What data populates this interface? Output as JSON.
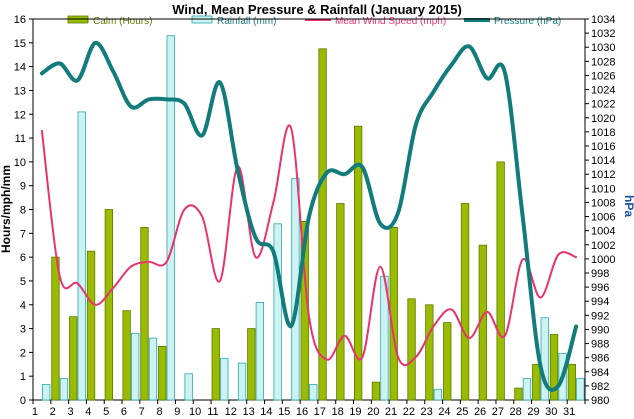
{
  "chart_data": {
    "type": "bar",
    "title": "Wind, Mean Pressure & Rainfall (January 2015)",
    "ylabel": "Hours/mph/mm",
    "y2label": "hPa",
    "categories": [
      "1",
      "2",
      "3",
      "4",
      "5",
      "6",
      "7",
      "8",
      "9",
      "10",
      "11",
      "12",
      "13",
      "14",
      "15",
      "16",
      "17",
      "18",
      "19",
      "20",
      "21",
      "22",
      "23",
      "24",
      "25",
      "26",
      "27",
      "28",
      "29",
      "30",
      "31"
    ],
    "ylim": [
      0,
      16
    ],
    "yticks": [
      0,
      1,
      2,
      3,
      4,
      5,
      6,
      7,
      8,
      9,
      10,
      11,
      12,
      13,
      14,
      15,
      16
    ],
    "y2lim": [
      980,
      1034
    ],
    "y2ticks": [
      980,
      982,
      984,
      986,
      988,
      990,
      992,
      994,
      996,
      998,
      1000,
      1002,
      1004,
      1006,
      1008,
      1010,
      1012,
      1014,
      1016,
      1018,
      1020,
      1022,
      1024,
      1026,
      1028,
      1030,
      1032,
      1034
    ],
    "grid": false,
    "legend_position": "top",
    "series": [
      {
        "name": "Calm (Hours)",
        "kind": "bar",
        "axis": "left",
        "color": "#99bb00",
        "values": [
          0,
          6.0,
          3.5,
          6.25,
          8.0,
          3.75,
          7.25,
          2.25,
          0,
          0,
          3.0,
          0,
          3.0,
          0,
          0,
          7.5,
          14.75,
          8.25,
          11.5,
          0.75,
          7.25,
          4.25,
          4.0,
          3.25,
          8.25,
          6.5,
          10.0,
          0.5,
          1.5,
          2.75,
          1.5
        ]
      },
      {
        "name": "Rainfall (mm)",
        "kind": "bar",
        "axis": "left",
        "color": "#ccf2f2",
        "values": [
          0.65,
          0.9,
          12.1,
          0,
          0,
          2.8,
          2.6,
          15.3,
          1.1,
          0,
          1.75,
          1.55,
          4.1,
          7.4,
          9.3,
          0.65,
          0,
          0,
          0,
          5.2,
          0,
          0,
          0.45,
          0,
          0,
          0,
          0,
          0.9,
          3.45,
          1.95,
          0.9
        ]
      },
      {
        "name": "Mean Wind Speed (mph)",
        "kind": "line",
        "axis": "left",
        "color": "#e8336e",
        "values": [
          11.3,
          5.2,
          4.9,
          4.0,
          4.7,
          5.6,
          5.8,
          5.8,
          8.0,
          7.7,
          5.0,
          9.8,
          6.0,
          8.3,
          11.4,
          3.5,
          1.7,
          2.7,
          1.8,
          5.6,
          1.8,
          1.8,
          3.1,
          3.8,
          2.6,
          3.7,
          2.7,
          5.9,
          4.3,
          6.1,
          6.0
        ]
      },
      {
        "name": "Pressure (hPa)",
        "kind": "line",
        "axis": "right",
        "color": "#127b7b",
        "values": [
          1026.3,
          1027.7,
          1025.3,
          1030.6,
          1026.6,
          1021.6,
          1022.6,
          1022.6,
          1022.0,
          1017.5,
          1025.0,
          1012.5,
          1003.0,
          1001.0,
          990.5,
          1006.0,
          1012.2,
          1012.0,
          1013.0,
          1005.0,
          1006.5,
          1019.0,
          1023.7,
          1027.5,
          1030.1,
          1025.6,
          1026.4,
          1006.0,
          984.8,
          982.0,
          990.4
        ]
      }
    ]
  }
}
